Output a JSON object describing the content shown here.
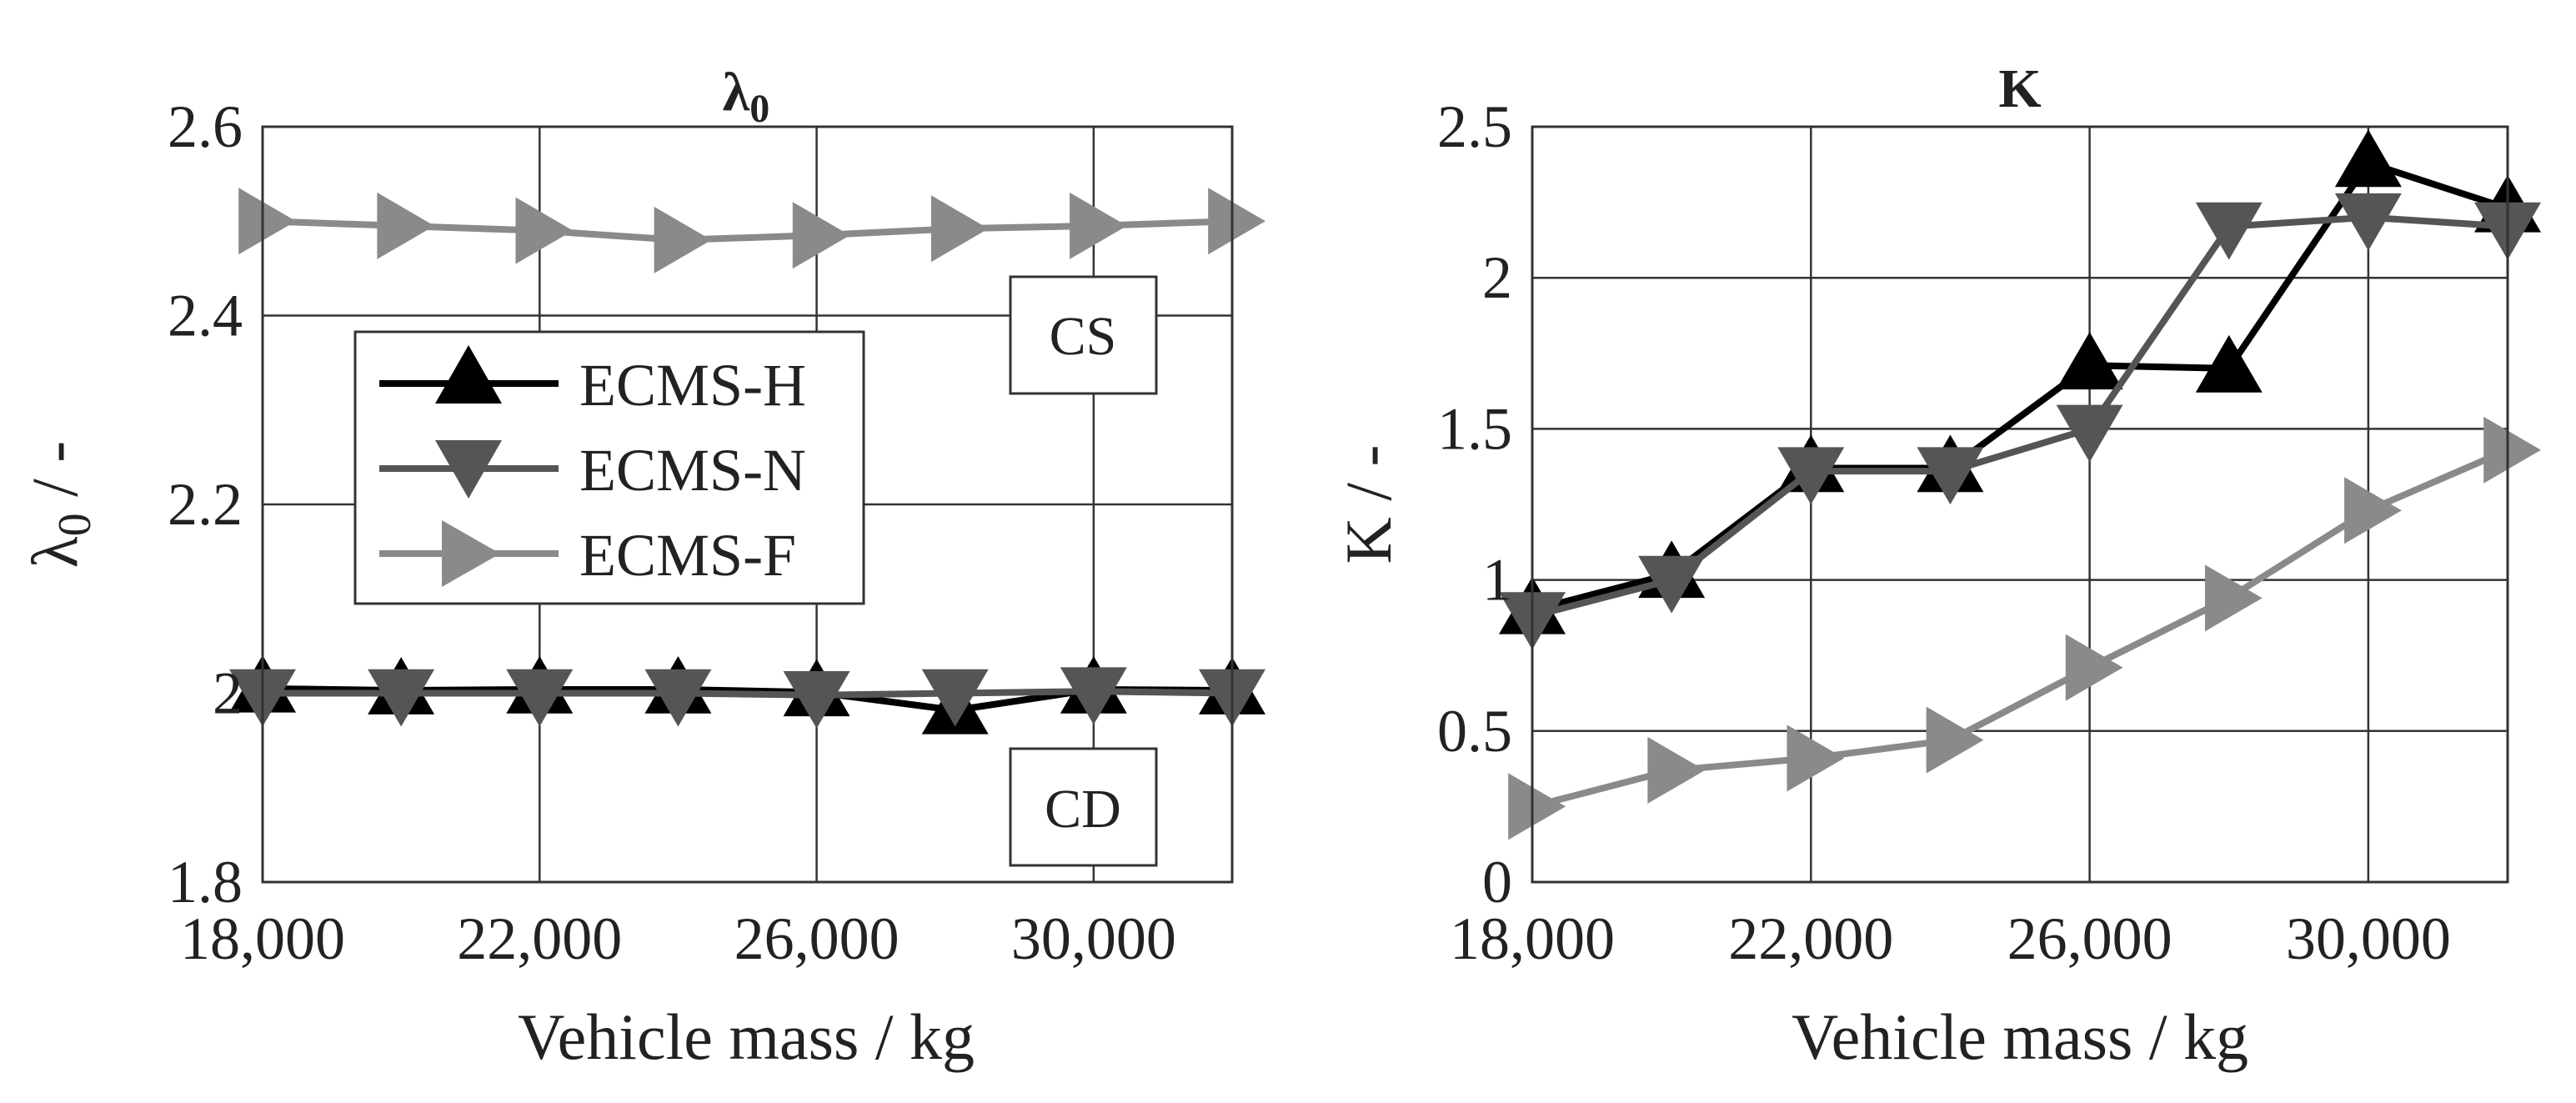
{
  "chart_data": [
    {
      "type": "line",
      "title": "λ",
      "title_subscript": "0",
      "xlabel": "Vehicle mass / kg",
      "ylabel": "λ",
      "ylabel_subscript": "0",
      "ylabel_suffix": " / -",
      "x": [
        18000,
        20000,
        22000,
        24000,
        26000,
        28000,
        30000,
        32000
      ],
      "xlim": [
        18000,
        32000
      ],
      "ylim": [
        1.8,
        2.6
      ],
      "xticks": [
        18000,
        22000,
        26000,
        30000
      ],
      "xtick_labels": [
        "18,000",
        "22,000",
        "26,000",
        "30,000"
      ],
      "yticks": [
        1.8,
        2.0,
        2.2,
        2.4,
        2.6
      ],
      "ytick_labels": [
        "1.8",
        "2",
        "2.2",
        "2.4",
        "2.6"
      ],
      "grid": true,
      "legend_position": "upper-left",
      "series": [
        {
          "name": "ECMS-H",
          "marker": "triangle-up",
          "color": "#000000",
          "values": [
            2.005,
            2.003,
            2.004,
            2.004,
            2.001,
            1.982,
            2.004,
            2.003
          ]
        },
        {
          "name": "ECMS-N",
          "marker": "triangle-down",
          "color": "#555555",
          "values": [
            2.0,
            2.0,
            2.0,
            2.0,
            1.998,
            2.0,
            2.002,
            2.0
          ]
        },
        {
          "name": "ECMS-F",
          "marker": "triangle-right",
          "color": "#8a8a8a",
          "values": [
            2.5,
            2.495,
            2.49,
            2.48,
            2.485,
            2.492,
            2.495,
            2.5
          ]
        }
      ],
      "annotations": [
        {
          "text": "CS",
          "near": "ECMS-F line, right"
        },
        {
          "text": "CD",
          "near": "ECMS-H/N lines, right"
        }
      ]
    },
    {
      "type": "line",
      "title": "K",
      "xlabel": "Vehicle mass / kg",
      "ylabel": "K / -",
      "x": [
        18000,
        20000,
        22000,
        24000,
        26000,
        28000,
        30000,
        32000
      ],
      "xlim": [
        18000,
        32000
      ],
      "ylim": [
        0,
        2.5
      ],
      "xticks": [
        18000,
        22000,
        26000,
        30000
      ],
      "xtick_labels": [
        "18,000",
        "22,000",
        "26,000",
        "30,000"
      ],
      "yticks": [
        0,
        0.5,
        1,
        1.5,
        2,
        2.5
      ],
      "ytick_labels": [
        "0",
        "0.5",
        "1",
        "1.5",
        "2",
        "2.5"
      ],
      "grid": true,
      "series": [
        {
          "name": "ECMS-H",
          "marker": "triangle-up",
          "color": "#000000",
          "values": [
            0.9,
            1.02,
            1.37,
            1.37,
            1.71,
            1.7,
            2.38,
            2.23
          ]
        },
        {
          "name": "ECMS-N",
          "marker": "triangle-down",
          "color": "#555555",
          "values": [
            0.88,
            1.0,
            1.36,
            1.36,
            1.5,
            2.17,
            2.2,
            2.17
          ]
        },
        {
          "name": "ECMS-F",
          "marker": "triangle-right",
          "color": "#8a8a8a",
          "values": [
            0.25,
            0.37,
            0.41,
            0.47,
            0.71,
            0.94,
            1.23,
            1.43
          ]
        }
      ]
    }
  ]
}
